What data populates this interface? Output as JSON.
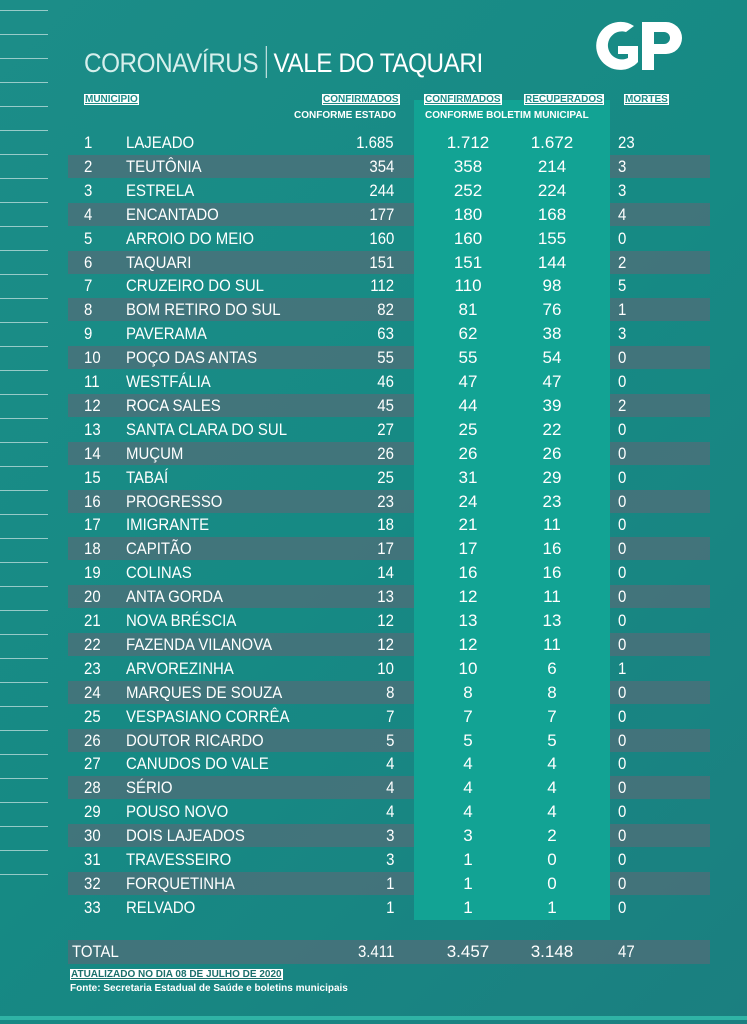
{
  "title": {
    "part1": "CORONAVÍRUS",
    "part2": "VALE DO TAQUARI"
  },
  "logo": "GP",
  "headers": {
    "municipio": "MUNICÍPIO",
    "confirmados_estado": "CONFIRMADOS",
    "conforme_estado": "CONFORME ESTADO",
    "confirmados_municipal": "CONFIRMADOS",
    "recuperados": "RECUPERADOS",
    "conforme_municipal": "CONFORME BOLETIM MUNICIPAL",
    "mortes": "MORTES"
  },
  "colors": {
    "background": "#1a8a85",
    "highlight_column": "#12a394",
    "alt_row": "#4f7680"
  },
  "rows": [
    [
      "1",
      "LAJEADO",
      "1.685",
      "1.712",
      "1.672",
      "23"
    ],
    [
      "2",
      "TEUTÔNIA",
      "354",
      "358",
      "214",
      "3"
    ],
    [
      "3",
      "ESTRELA",
      "244",
      "252",
      "224",
      "3"
    ],
    [
      "4",
      "ENCANTADO",
      "177",
      "180",
      "168",
      "4"
    ],
    [
      "5",
      "ARROIO DO MEIO",
      "160",
      "160",
      "155",
      "0"
    ],
    [
      "6",
      "TAQUARI",
      "151",
      "151",
      "144",
      "2"
    ],
    [
      "7",
      "CRUZEIRO DO SUL",
      "112",
      "110",
      "98",
      "5"
    ],
    [
      "8",
      "BOM RETIRO DO SUL",
      "82",
      "81",
      "76",
      "1"
    ],
    [
      "9",
      "PAVERAMA",
      "63",
      "62",
      "38",
      "3"
    ],
    [
      "10",
      "POÇO DAS ANTAS",
      "55",
      "55",
      "54",
      "0"
    ],
    [
      "11",
      "WESTFÁLIA",
      "46",
      "47",
      "47",
      "0"
    ],
    [
      "12",
      "ROCA SALES",
      "45",
      "44",
      "39",
      "2"
    ],
    [
      "13",
      "SANTA CLARA DO SUL",
      "27",
      "25",
      "22",
      "0"
    ],
    [
      "14",
      "MUÇUM",
      "26",
      "26",
      "26",
      "0"
    ],
    [
      "15",
      "TABAÍ",
      "25",
      "31",
      "29",
      "0"
    ],
    [
      "16",
      "PROGRESSO",
      "23",
      "24",
      "23",
      "0"
    ],
    [
      "17",
      "IMIGRANTE",
      "18",
      "21",
      "11",
      "0"
    ],
    [
      "18",
      "CAPITÃO",
      "17",
      "17",
      "16",
      "0"
    ],
    [
      "19",
      "COLINAS",
      "14",
      "16",
      "16",
      "0"
    ],
    [
      "20",
      "ANTA GORDA",
      "13",
      "12",
      "11",
      "0"
    ],
    [
      "21",
      "NOVA BRÉSCIA",
      "12",
      "13",
      "13",
      "0"
    ],
    [
      "22",
      "FAZENDA VILANOVA",
      "12",
      "12",
      "11",
      "0"
    ],
    [
      "23",
      "ARVOREZINHA",
      "10",
      "10",
      "6",
      "1"
    ],
    [
      "24",
      "MARQUES DE SOUZA",
      "8",
      "8",
      "8",
      "0"
    ],
    [
      "25",
      "VESPASIANO CORRÊA",
      "7",
      "7",
      "7",
      "0"
    ],
    [
      "26",
      "DOUTOR RICARDO",
      "5",
      "5",
      "5",
      "0"
    ],
    [
      "27",
      "CANUDOS DO VALE",
      "4",
      "4",
      "4",
      "0"
    ],
    [
      "28",
      "SÉRIO",
      "4",
      "4",
      "4",
      "0"
    ],
    [
      "29",
      "POUSO NOVO",
      "4",
      "4",
      "4",
      "0"
    ],
    [
      "30",
      "DOIS LAJEADOS",
      "3",
      "3",
      "2",
      "0"
    ],
    [
      "31",
      "TRAVESSEIRO",
      "3",
      "1",
      "0",
      "0"
    ],
    [
      "32",
      "FORQUETINHA",
      "1",
      "1",
      "0",
      "0"
    ],
    [
      "33",
      "RELVADO",
      "1",
      "1",
      "1",
      "0"
    ]
  ],
  "total": {
    "label": "TOTAL",
    "confirmados_estado": "3.411",
    "confirmados_municipal": "3.457",
    "recuperados": "3.148",
    "mortes": "47"
  },
  "footer": {
    "updated": "ATUALIZADO NO DIA 08 DE JULHO DE 2020",
    "source": "Fonte: Secretaria Estadual de Saúde e boletins municipais"
  }
}
